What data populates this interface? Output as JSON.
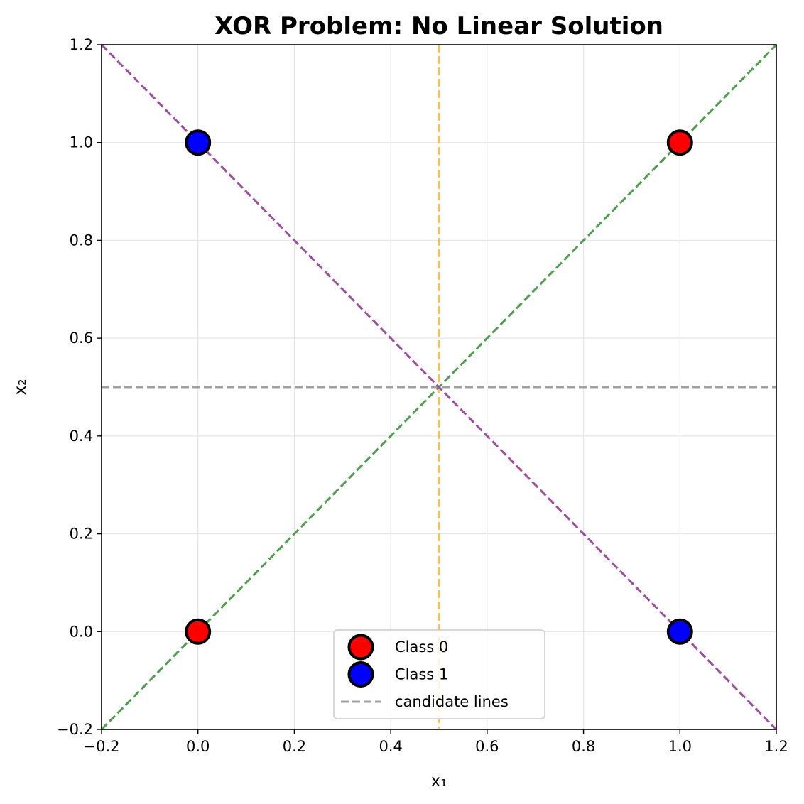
{
  "chart_data": {
    "type": "scatter",
    "title": "XOR Problem: No Linear Solution",
    "xlabel": "x₁",
    "ylabel": "x₂",
    "xlim": [
      -0.2,
      1.2
    ],
    "ylim": [
      -0.2,
      1.2
    ],
    "xticks": [
      -0.2,
      0.0,
      0.2,
      0.4,
      0.6,
      0.8,
      1.0,
      1.2
    ],
    "yticks": [
      -0.2,
      0.0,
      0.2,
      0.4,
      0.6,
      0.8,
      1.0,
      1.2
    ],
    "xtick_labels": [
      "−0.2",
      "0.0",
      "0.2",
      "0.4",
      "0.6",
      "0.8",
      "1.0",
      "1.2"
    ],
    "ytick_labels": [
      "−0.2",
      "0.0",
      "0.2",
      "0.4",
      "0.6",
      "0.8",
      "1.0",
      "1.2"
    ],
    "grid": true,
    "legend_position": "lower-center",
    "series": [
      {
        "name": "Class 0",
        "color": "#ff0000",
        "points": [
          [
            0,
            0
          ],
          [
            1,
            1
          ]
        ]
      },
      {
        "name": "Class 1",
        "color": "#0000ff",
        "points": [
          [
            0,
            1
          ],
          [
            1,
            0
          ]
        ]
      }
    ],
    "lines": [
      {
        "name": "candidate lines",
        "color": "#a0a0a0",
        "kind": "horizontal",
        "y": 0.5
      },
      {
        "color": "#ffc04d",
        "kind": "vertical",
        "x": 0.5
      },
      {
        "color": "#4ca04c",
        "kind": "diagonal",
        "from": [
          -0.2,
          -0.2
        ],
        "to": [
          1.2,
          1.2
        ]
      },
      {
        "color": "#a04ca0",
        "kind": "diagonal",
        "from": [
          -0.2,
          1.2
        ],
        "to": [
          1.2,
          -0.2
        ]
      }
    ]
  }
}
